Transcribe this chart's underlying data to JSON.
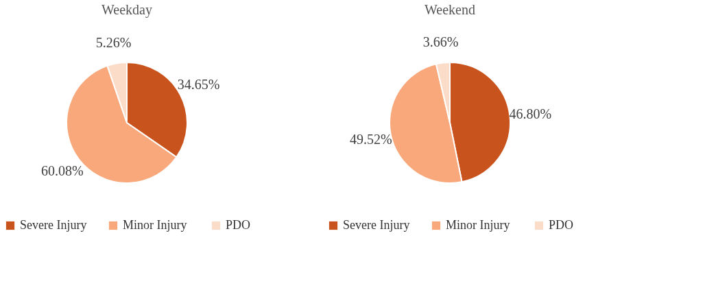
{
  "chart_data": [
    {
      "type": "pie",
      "title": "Weekday",
      "categories": [
        "Severe Injury",
        "Minor Injury",
        "PDO"
      ],
      "values": [
        34.65,
        60.08,
        5.26
      ],
      "colors": [
        "#c9531d",
        "#f8a87a",
        "#fbdcc8"
      ],
      "value_labels": [
        "34.65%",
        "60.08%",
        "5.26%"
      ],
      "legend": "bottom"
    },
    {
      "type": "pie",
      "title": "Weekend",
      "categories": [
        "Severe Injury",
        "Minor Injury",
        "PDO"
      ],
      "values": [
        46.8,
        49.52,
        3.66
      ],
      "colors": [
        "#c9531d",
        "#f8a87a",
        "#fbdcc8"
      ],
      "value_labels": [
        "46.80%",
        "49.52%",
        "3.66%"
      ],
      "legend": "bottom"
    }
  ]
}
